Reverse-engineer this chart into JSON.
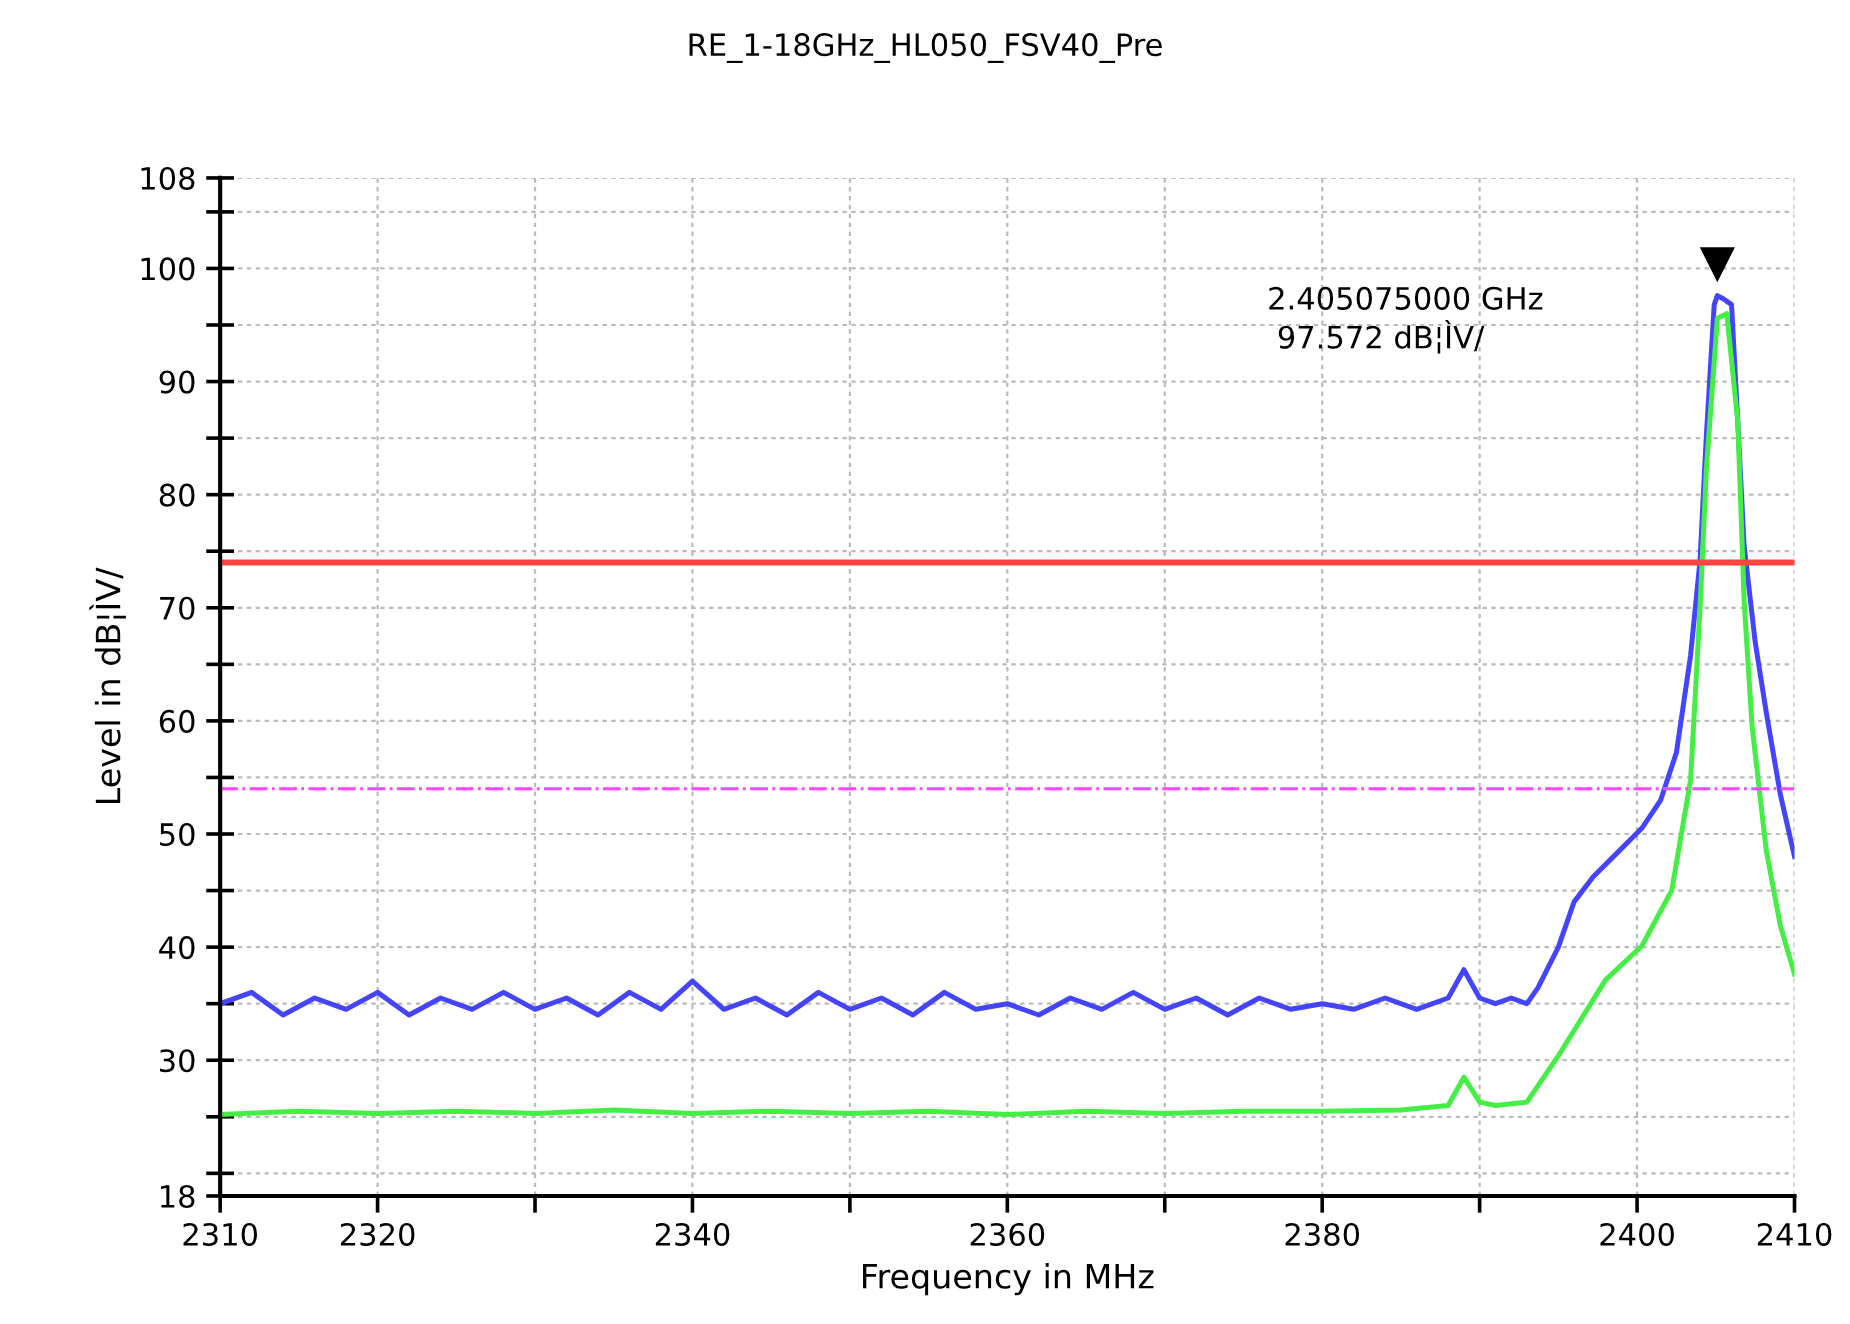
{
  "chart_data": {
    "type": "line",
    "title": "RE_1-18GHz_HL050_FSV40_Pre",
    "xlabel": "Frequency in MHz",
    "ylabel": "Level in dB¦ÌV/",
    "xlim": [
      2310,
      2410
    ],
    "xticks": [
      2310,
      2320,
      {
        "value": 2330,
        "label": null
      },
      2340,
      {
        "value": 2350,
        "label": null
      },
      2360,
      {
        "value": 2370,
        "label": null
      },
      2380,
      {
        "value": 2390,
        "label": null
      },
      2400,
      2410
    ],
    "ylim": [
      18,
      108
    ],
    "yticks": [
      18,
      {
        "value": 20,
        "label": null
      },
      {
        "value": 25,
        "label": null
      },
      30,
      {
        "value": 35,
        "label": null
      },
      40,
      {
        "value": 45,
        "label": null
      },
      50,
      {
        "value": 55,
        "label": null
      },
      60,
      {
        "value": 65,
        "label": null
      },
      70,
      {
        "value": 75,
        "label": null
      },
      80,
      {
        "value": 85,
        "label": null
      },
      90,
      {
        "value": 95,
        "label": null
      },
      100,
      {
        "value": 105,
        "label": null
      },
      108
    ],
    "grid": true,
    "legend": false,
    "line_style": "solid",
    "marker": "none",
    "series": [
      {
        "color": "#4444ff",
        "x": [
          2310,
          2312,
          2314,
          2316,
          2318,
          2320,
          2322,
          2324,
          2326,
          2328,
          2330,
          2332,
          2334,
          2336,
          2338,
          2340,
          2342,
          2344,
          2346,
          2348,
          2350,
          2352,
          2354,
          2356,
          2358,
          2360,
          2362,
          2364,
          2366,
          2368,
          2370,
          2372,
          2374,
          2376,
          2378,
          2380,
          2382,
          2384,
          2386,
          2388,
          2389,
          2390,
          2391,
          2392,
          2393,
          2393.7,
          2395,
          2396,
          2397.2,
          2398.5,
          2400.3,
          2401.5,
          2402.5,
          2403.4,
          2404.0,
          2404.4,
          2404.9,
          2405.1,
          2405.5,
          2406.0,
          2406.4,
          2406.8,
          2407.5,
          2408.2,
          2409.1,
          2410
        ],
        "values": [
          35,
          36,
          34,
          35.5,
          34.5,
          36,
          34,
          35.5,
          34.5,
          36,
          34.5,
          35.5,
          34,
          36,
          34.5,
          37,
          34.5,
          35.5,
          34,
          36,
          34.5,
          35.5,
          34,
          36,
          34.5,
          35,
          34,
          35.5,
          34.5,
          36,
          34.5,
          35.5,
          34,
          35.5,
          34.5,
          35,
          34.5,
          35.5,
          34.5,
          35.5,
          38,
          35.5,
          35,
          35.5,
          35,
          36.4,
          40,
          44,
          46.2,
          48,
          50.5,
          53,
          57.2,
          65.8,
          74.2,
          85.2,
          96.8,
          97.6,
          97.3,
          96.8,
          86.4,
          75.5,
          67,
          60.8,
          53.5,
          48
        ]
      },
      {
        "color": "#44ee44",
        "x": [
          2310,
          2315,
          2320,
          2325,
          2330,
          2335,
          2340,
          2345,
          2350,
          2355,
          2360,
          2365,
          2370,
          2375,
          2380,
          2385,
          2388,
          2389,
          2390,
          2391,
          2393,
          2395,
          2398,
          2400.3,
          2402.2,
          2403.4,
          2404.0,
          2404.4,
          2405.1,
          2405.7,
          2406.4,
          2406.8,
          2407.3,
          2408.2,
          2409.1,
          2410
        ],
        "values": [
          25.2,
          25.5,
          25.3,
          25.5,
          25.3,
          25.6,
          25.3,
          25.5,
          25.3,
          25.5,
          25.2,
          25.5,
          25.3,
          25.5,
          25.5,
          25.6,
          26,
          28.5,
          26.3,
          26,
          26.3,
          30.4,
          37.1,
          40.1,
          45,
          54.8,
          70,
          82.2,
          95.6,
          96,
          86.4,
          70.6,
          59.6,
          48.6,
          41.9,
          37.6
        ]
      },
      {
        "type": "scatter",
        "color": "#000000",
        "marker": "triangle",
        "x": [
          2405.1
        ],
        "values": [
          100.4
        ]
      }
    ],
    "ref_lines": [
      {
        "axis": "y",
        "value": 74,
        "color": "#ff4444",
        "line_style": "solid"
      },
      {
        "axis": "y",
        "value": 54,
        "color": "#ff44ff",
        "line_style": "dashdot"
      }
    ],
    "annotations": [
      "2.405075000 GHz\n 97.572 dB¦ÌV/"
    ]
  }
}
